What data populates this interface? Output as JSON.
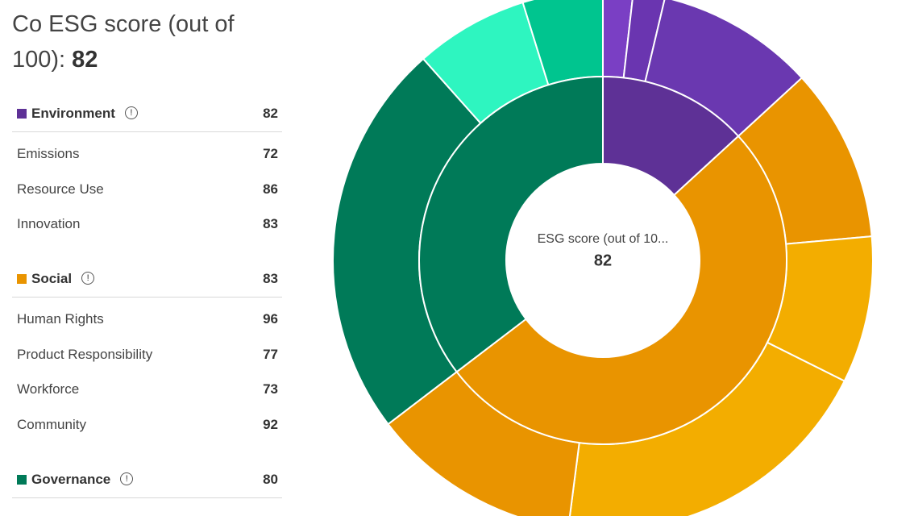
{
  "header": {
    "title": "Co ESG score (out of 100):",
    "score": 82
  },
  "sections": [
    {
      "name": "Environment",
      "score": 82,
      "color": "#5e3196",
      "items": [
        {
          "name": "Emissions",
          "score": 72
        },
        {
          "name": "Resource Use",
          "score": 86
        },
        {
          "name": "Innovation",
          "score": 83
        }
      ]
    },
    {
      "name": "Social",
      "score": 83,
      "color": "#e99400",
      "items": [
        {
          "name": "Human Rights",
          "score": 96
        },
        {
          "name": "Product Responsibility",
          "score": 77
        },
        {
          "name": "Workforce",
          "score": 73
        },
        {
          "name": "Community",
          "score": 92
        }
      ]
    },
    {
      "name": "Governance",
      "score": 80,
      "color": "#007a58",
      "items": []
    }
  ],
  "chart_data": {
    "type": "sunburst",
    "center_label": "ESG score (out of 10...",
    "center_value": 82,
    "groups": [
      {
        "color": "#5e3196",
        "children": [
          {
            "weight": 1.8,
            "color": "#7a3fc4"
          },
          {
            "weight": 1.9,
            "color": "#6a35b0"
          },
          {
            "weight": 9.5,
            "color": "#6a38b0"
          }
        ]
      },
      {
        "color": "#e99400",
        "children": [
          {
            "weight": 10.4,
            "color": "#e99400"
          },
          {
            "weight": 8.8,
            "color": "#f3ad00"
          },
          {
            "weight": 19.7,
            "color": "#f3ad00"
          },
          {
            "weight": 12.6,
            "color": "#e99400"
          }
        ]
      },
      {
        "color": "#007a58",
        "children": [
          {
            "weight": 23.8,
            "color": "#007a58"
          },
          {
            "weight": 6.8,
            "color": "#2ef5c0"
          },
          {
            "weight": 4.8,
            "color": "#00c58f"
          }
        ]
      }
    ]
  }
}
